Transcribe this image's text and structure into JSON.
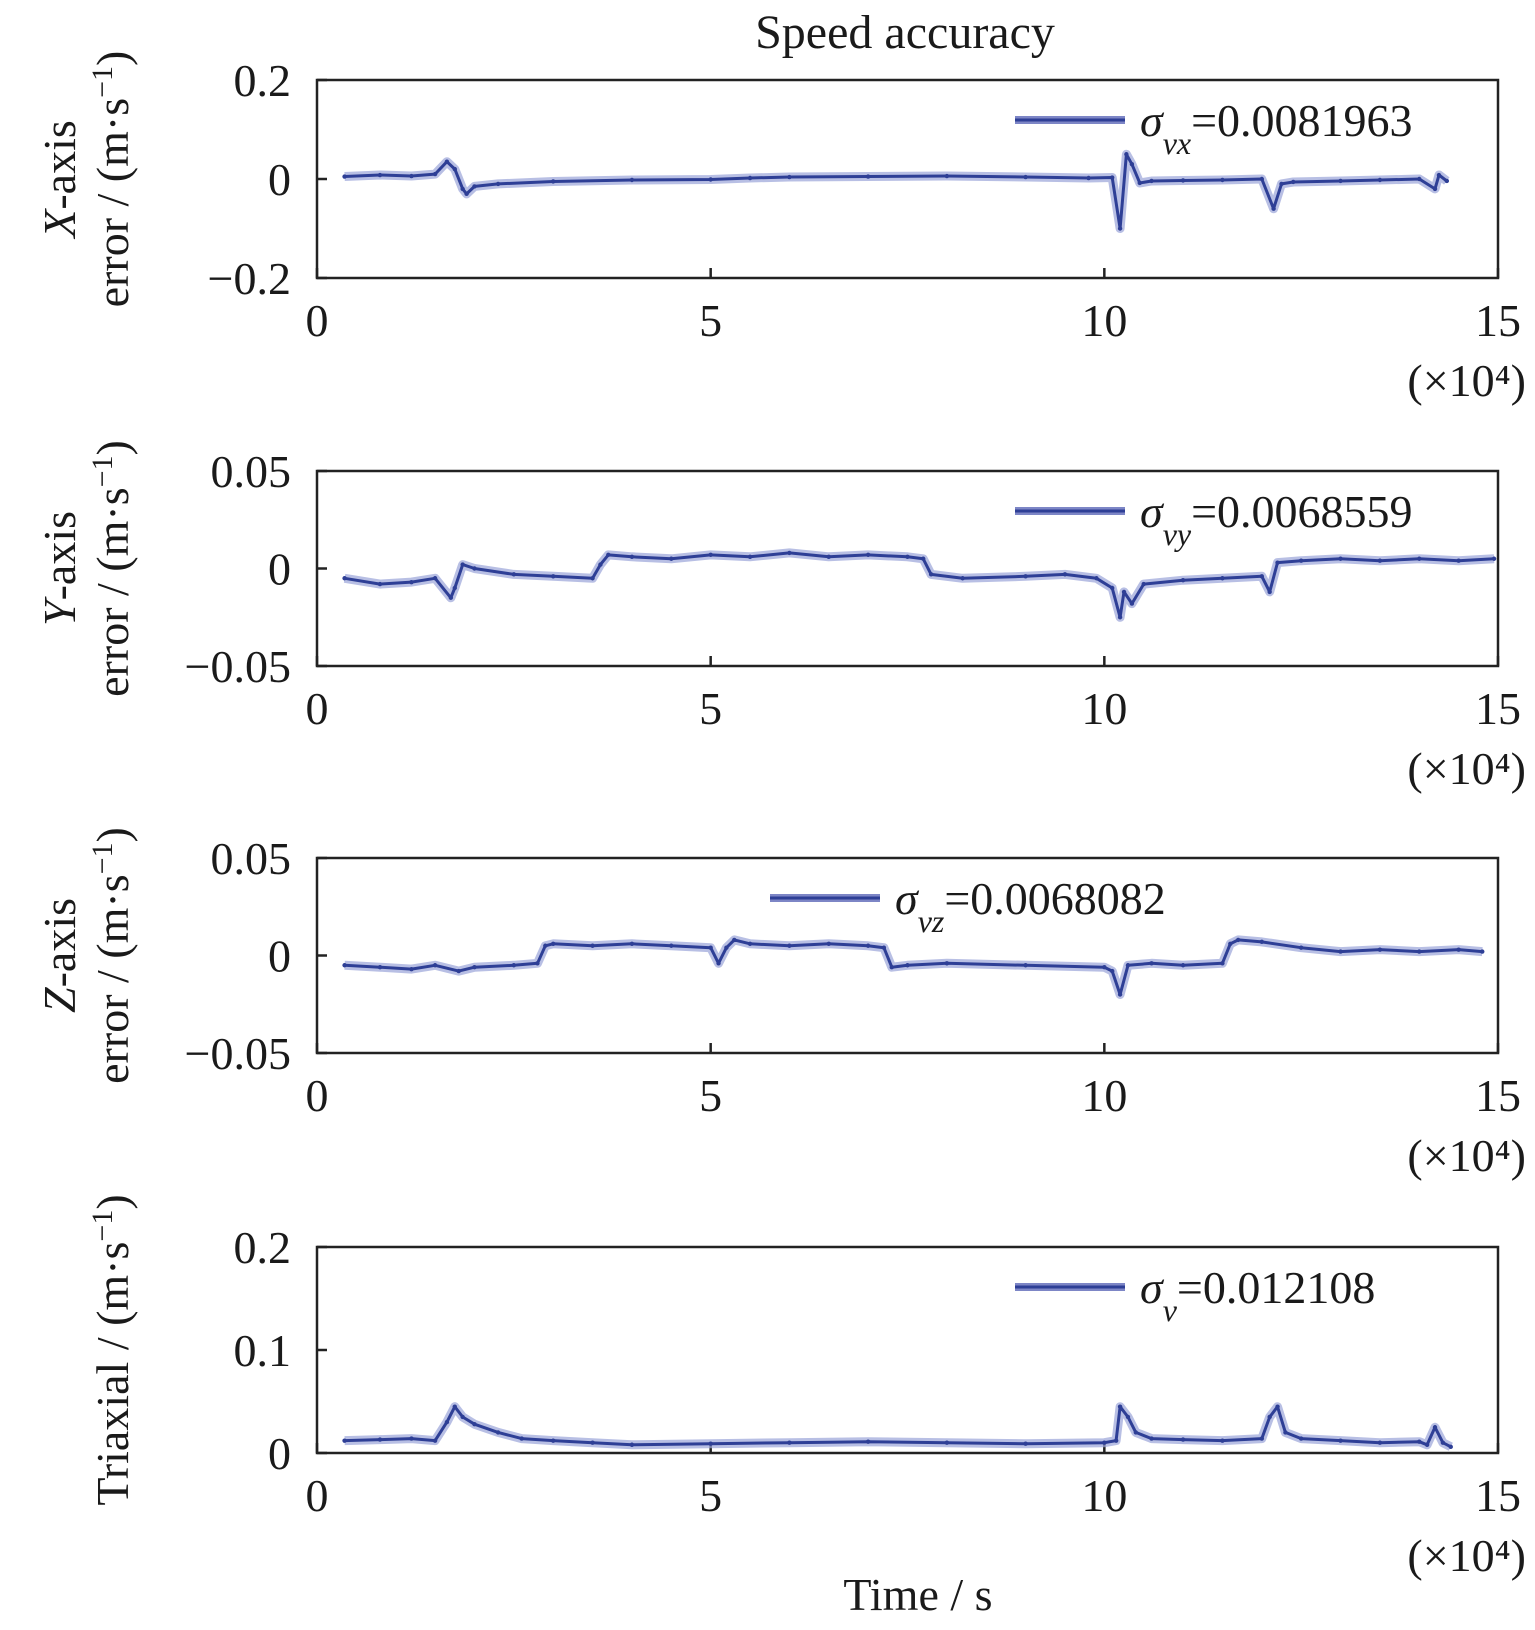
{
  "figure": {
    "title": "Speed accuracy",
    "xlabel": "Time / s",
    "x_multiplier": "(×10⁴)"
  },
  "chart_data": [
    {
      "type": "line",
      "id": "x",
      "ylabel": "X-axis error / (m·s⁻¹)",
      "ylabel_parts": {
        "italic": "X",
        "rest": "-axis",
        "line2": "error / (m·s",
        "sup": "−1",
        "close": ")"
      },
      "xlim": [
        0,
        15
      ],
      "ylim": [
        -0.2,
        0.2
      ],
      "xticks": [
        0,
        5,
        10,
        15
      ],
      "xtick_labels": [
        "0",
        "5",
        "10",
        "15"
      ],
      "yticks": [
        -0.2,
        0,
        0.2
      ],
      "ytick_labels": [
        "−0.2",
        "0",
        "0.2"
      ],
      "legend": {
        "symbol": "σ",
        "sub": "vx",
        "value": "=0.0081963",
        "position": "top-right"
      },
      "series": [
        {
          "name": "σvx=0.0081963",
          "x": [
            0.35,
            0.8,
            1.2,
            1.5,
            1.65,
            1.75,
            1.85,
            1.9,
            2.0,
            2.3,
            3.0,
            4.0,
            5.0,
            5.5,
            6.0,
            7.0,
            8.0,
            9.0,
            9.8,
            10.1,
            10.2,
            10.28,
            10.35,
            10.45,
            10.6,
            11.0,
            11.5,
            12.0,
            12.15,
            12.25,
            12.4,
            13.0,
            13.5,
            14.0,
            14.2,
            14.25,
            14.35
          ],
          "y": [
            0.005,
            0.008,
            0.006,
            0.01,
            0.035,
            0.02,
            -0.02,
            -0.03,
            -0.015,
            -0.01,
            -0.005,
            -0.002,
            -0.001,
            0.002,
            0.004,
            0.005,
            0.006,
            0.004,
            0.002,
            0.003,
            -0.1,
            0.05,
            0.03,
            -0.008,
            -0.004,
            -0.003,
            -0.002,
            0.0,
            -0.06,
            -0.01,
            -0.006,
            -0.004,
            -0.002,
            0.0,
            -0.02,
            0.008,
            -0.004
          ],
          "color": "#2e3f96"
        }
      ]
    },
    {
      "type": "line",
      "id": "y",
      "ylabel": "Y-axis error / (m·s⁻¹)",
      "ylabel_parts": {
        "italic": "Y",
        "rest": "-axis",
        "line2": "error / (m·s",
        "sup": "−1",
        "close": ")"
      },
      "xlim": [
        0,
        15
      ],
      "ylim": [
        -0.05,
        0.05
      ],
      "xticks": [
        0,
        5,
        10,
        15
      ],
      "xtick_labels": [
        "0",
        "5",
        "10",
        "15"
      ],
      "yticks": [
        -0.05,
        0,
        0.05
      ],
      "ytick_labels": [
        "−0.05",
        "0",
        "0.05"
      ],
      "legend": {
        "symbol": "σ",
        "sub": "vy",
        "value": "=0.0068559",
        "position": "top-right"
      },
      "series": [
        {
          "name": "σvy=0.0068559",
          "x": [
            0.35,
            0.8,
            1.2,
            1.5,
            1.7,
            1.75,
            1.85,
            2.0,
            2.5,
            3.0,
            3.5,
            3.6,
            3.7,
            4.0,
            4.5,
            5.0,
            5.5,
            6.0,
            6.5,
            7.0,
            7.5,
            7.7,
            7.8,
            8.2,
            9.0,
            9.5,
            9.9,
            10.1,
            10.2,
            10.25,
            10.35,
            10.5,
            11.0,
            11.5,
            12.0,
            12.1,
            12.2,
            12.5,
            13.0,
            13.5,
            14.0,
            14.5,
            14.95
          ],
          "y": [
            -0.005,
            -0.008,
            -0.007,
            -0.005,
            -0.015,
            -0.01,
            0.002,
            0.0,
            -0.003,
            -0.004,
            -0.005,
            0.002,
            0.007,
            0.006,
            0.005,
            0.007,
            0.006,
            0.008,
            0.006,
            0.007,
            0.006,
            0.005,
            -0.003,
            -0.005,
            -0.004,
            -0.003,
            -0.005,
            -0.01,
            -0.025,
            -0.012,
            -0.018,
            -0.008,
            -0.006,
            -0.005,
            -0.004,
            -0.012,
            0.003,
            0.004,
            0.005,
            0.004,
            0.005,
            0.004,
            0.005
          ],
          "color": "#2e3f96"
        }
      ]
    },
    {
      "type": "line",
      "id": "z",
      "ylabel": "Z-axis error / (m·s⁻¹)",
      "ylabel_parts": {
        "italic": "Z",
        "rest": "-axis",
        "line2": "error / (m·s",
        "sup": "−1",
        "close": ")"
      },
      "xlim": [
        0,
        15
      ],
      "ylim": [
        -0.05,
        0.05
      ],
      "xticks": [
        0,
        5,
        10,
        15
      ],
      "xtick_labels": [
        "0",
        "5",
        "10",
        "15"
      ],
      "yticks": [
        -0.05,
        0,
        0.05
      ],
      "ytick_labels": [
        "−0.05",
        "0",
        "0.05"
      ],
      "legend": {
        "symbol": "σ",
        "sub": "vz",
        "value": "=0.0068082",
        "position": "top-center"
      },
      "series": [
        {
          "name": "σvz=0.0068082",
          "x": [
            0.35,
            0.8,
            1.2,
            1.5,
            1.8,
            2.0,
            2.5,
            2.8,
            2.9,
            3.0,
            3.5,
            4.0,
            4.5,
            5.0,
            5.1,
            5.2,
            5.3,
            5.5,
            6.0,
            6.5,
            7.0,
            7.2,
            7.3,
            7.5,
            8.0,
            9.0,
            10.0,
            10.1,
            10.2,
            10.3,
            10.6,
            11.0,
            11.5,
            11.6,
            11.7,
            12.0,
            12.5,
            13.0,
            13.5,
            14.0,
            14.5,
            14.8
          ],
          "y": [
            -0.005,
            -0.006,
            -0.007,
            -0.005,
            -0.008,
            -0.006,
            -0.005,
            -0.004,
            0.005,
            0.006,
            0.005,
            0.006,
            0.005,
            0.004,
            -0.004,
            0.004,
            0.008,
            0.006,
            0.005,
            0.006,
            0.005,
            0.004,
            -0.006,
            -0.005,
            -0.004,
            -0.005,
            -0.006,
            -0.008,
            -0.02,
            -0.005,
            -0.004,
            -0.005,
            -0.004,
            0.006,
            0.008,
            0.007,
            0.004,
            0.002,
            0.003,
            0.002,
            0.003,
            0.002
          ],
          "color": "#2e3f96"
        }
      ]
    },
    {
      "type": "line",
      "id": "v",
      "ylabel": "Triaxial / (m·s⁻¹)",
      "ylabel_parts": {
        "italic": "",
        "rest": "",
        "line2": "Triaxial / (m·s",
        "sup": "−1",
        "close": ")"
      },
      "xlim": [
        0,
        15
      ],
      "ylim": [
        0,
        0.2
      ],
      "xticks": [
        0,
        5,
        10,
        15
      ],
      "xtick_labels": [
        "0",
        "5",
        "10",
        "15"
      ],
      "yticks": [
        0,
        0.1,
        0.2
      ],
      "ytick_labels": [
        "0",
        "0.1",
        "0.2"
      ],
      "legend": {
        "symbol": "σ",
        "sub": "v",
        "value": "=0.012108",
        "position": "top-right"
      },
      "series": [
        {
          "name": "σv=0.012108",
          "x": [
            0.35,
            0.8,
            1.2,
            1.5,
            1.65,
            1.75,
            1.85,
            2.0,
            2.3,
            2.6,
            3.0,
            3.5,
            4.0,
            5.0,
            6.0,
            7.0,
            8.0,
            9.0,
            10.0,
            10.15,
            10.2,
            10.3,
            10.4,
            10.6,
            11.0,
            11.5,
            12.0,
            12.1,
            12.2,
            12.3,
            12.5,
            13.0,
            13.5,
            14.0,
            14.1,
            14.2,
            14.3,
            14.4
          ],
          "y": [
            0.012,
            0.013,
            0.014,
            0.012,
            0.03,
            0.045,
            0.035,
            0.028,
            0.02,
            0.014,
            0.012,
            0.01,
            0.008,
            0.009,
            0.01,
            0.011,
            0.01,
            0.009,
            0.01,
            0.012,
            0.045,
            0.035,
            0.02,
            0.014,
            0.013,
            0.012,
            0.014,
            0.035,
            0.045,
            0.02,
            0.014,
            0.012,
            0.01,
            0.011,
            0.008,
            0.025,
            0.01,
            0.006
          ],
          "color": "#2e3f96"
        }
      ]
    }
  ]
}
